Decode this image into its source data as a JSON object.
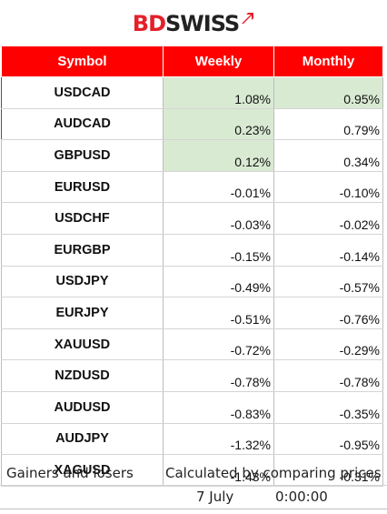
{
  "brand": {
    "part1": "BD",
    "part2": "SWISS"
  },
  "table": {
    "headers": [
      "Symbol",
      "Weekly",
      "Monthly"
    ],
    "rows": [
      {
        "symbol": "USDCAD",
        "weekly": "1.08%",
        "monthly": "0.95%",
        "weekly_hl": true,
        "monthly_hl": true
      },
      {
        "symbol": "AUDCAD",
        "weekly": "0.23%",
        "monthly": "0.79%",
        "weekly_hl": true,
        "monthly_hl": false
      },
      {
        "symbol": "GBPUSD",
        "weekly": "0.12%",
        "monthly": "0.34%",
        "weekly_hl": true,
        "monthly_hl": false
      },
      {
        "symbol": "EURUSD",
        "weekly": "-0.01%",
        "monthly": "-0.10%",
        "weekly_hl": false,
        "monthly_hl": false
      },
      {
        "symbol": "USDCHF",
        "weekly": "-0.03%",
        "monthly": "-0.02%",
        "weekly_hl": false,
        "monthly_hl": false
      },
      {
        "symbol": "EURGBP",
        "weekly": "-0.15%",
        "monthly": "-0.14%",
        "weekly_hl": false,
        "monthly_hl": false
      },
      {
        "symbol": "USDJPY",
        "weekly": "-0.49%",
        "monthly": "-0.57%",
        "weekly_hl": false,
        "monthly_hl": false
      },
      {
        "symbol": "EURJPY",
        "weekly": "-0.51%",
        "monthly": "-0.76%",
        "weekly_hl": false,
        "monthly_hl": false
      },
      {
        "symbol": "XAUUSD",
        "weekly": "-0.72%",
        "monthly": "-0.29%",
        "weekly_hl": false,
        "monthly_hl": false
      },
      {
        "symbol": "NZDUSD",
        "weekly": "-0.78%",
        "monthly": "-0.78%",
        "weekly_hl": false,
        "monthly_hl": false
      },
      {
        "symbol": "AUDUSD",
        "weekly": "-0.83%",
        "monthly": "-0.35%",
        "weekly_hl": false,
        "monthly_hl": false
      },
      {
        "symbol": "AUDJPY",
        "weekly": "-1.32%",
        "monthly": "-0.95%",
        "weekly_hl": false,
        "monthly_hl": false
      },
      {
        "symbol": "XAGUSD",
        "weekly": "-1.43%",
        "monthly": "-0.31%",
        "weekly_hl": false,
        "monthly_hl": false
      }
    ]
  },
  "footer": {
    "gainers_label": "Gainers and losers",
    "calc_label": "Calculated by comparing prices",
    "date": "7 July",
    "time": "0:00:00"
  },
  "colors": {
    "header_bg": "#ff0000",
    "gain_bg": "#d9ead3",
    "brand_red": "#e4202a"
  }
}
